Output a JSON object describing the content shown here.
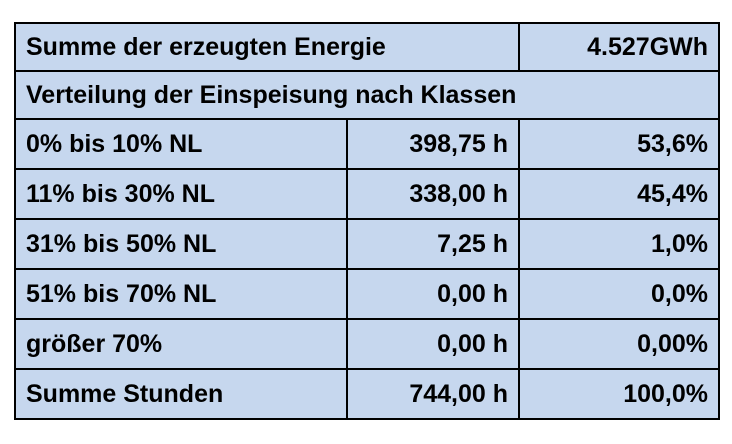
{
  "header": {
    "label": "Summe der erzeugten Energie",
    "value": "4.527GWh"
  },
  "section_title": "Verteilung der Einspeisung nach Klassen",
  "table": {
    "rows": [
      [
        "0% bis 10% NL",
        "398,75 h",
        "53,6%"
      ],
      [
        "11% bis 30% NL",
        "338,00 h",
        "45,4%"
      ],
      [
        "31% bis 50% NL",
        "7,25 h",
        "1,0%"
      ],
      [
        "51% bis 70% NL",
        "0,00 h",
        "0,0%"
      ],
      [
        "größer 70%",
        "0,00 h",
        "0,00%"
      ],
      [
        "Summe Stunden",
        "744,00 h",
        "100,0%"
      ]
    ]
  }
}
